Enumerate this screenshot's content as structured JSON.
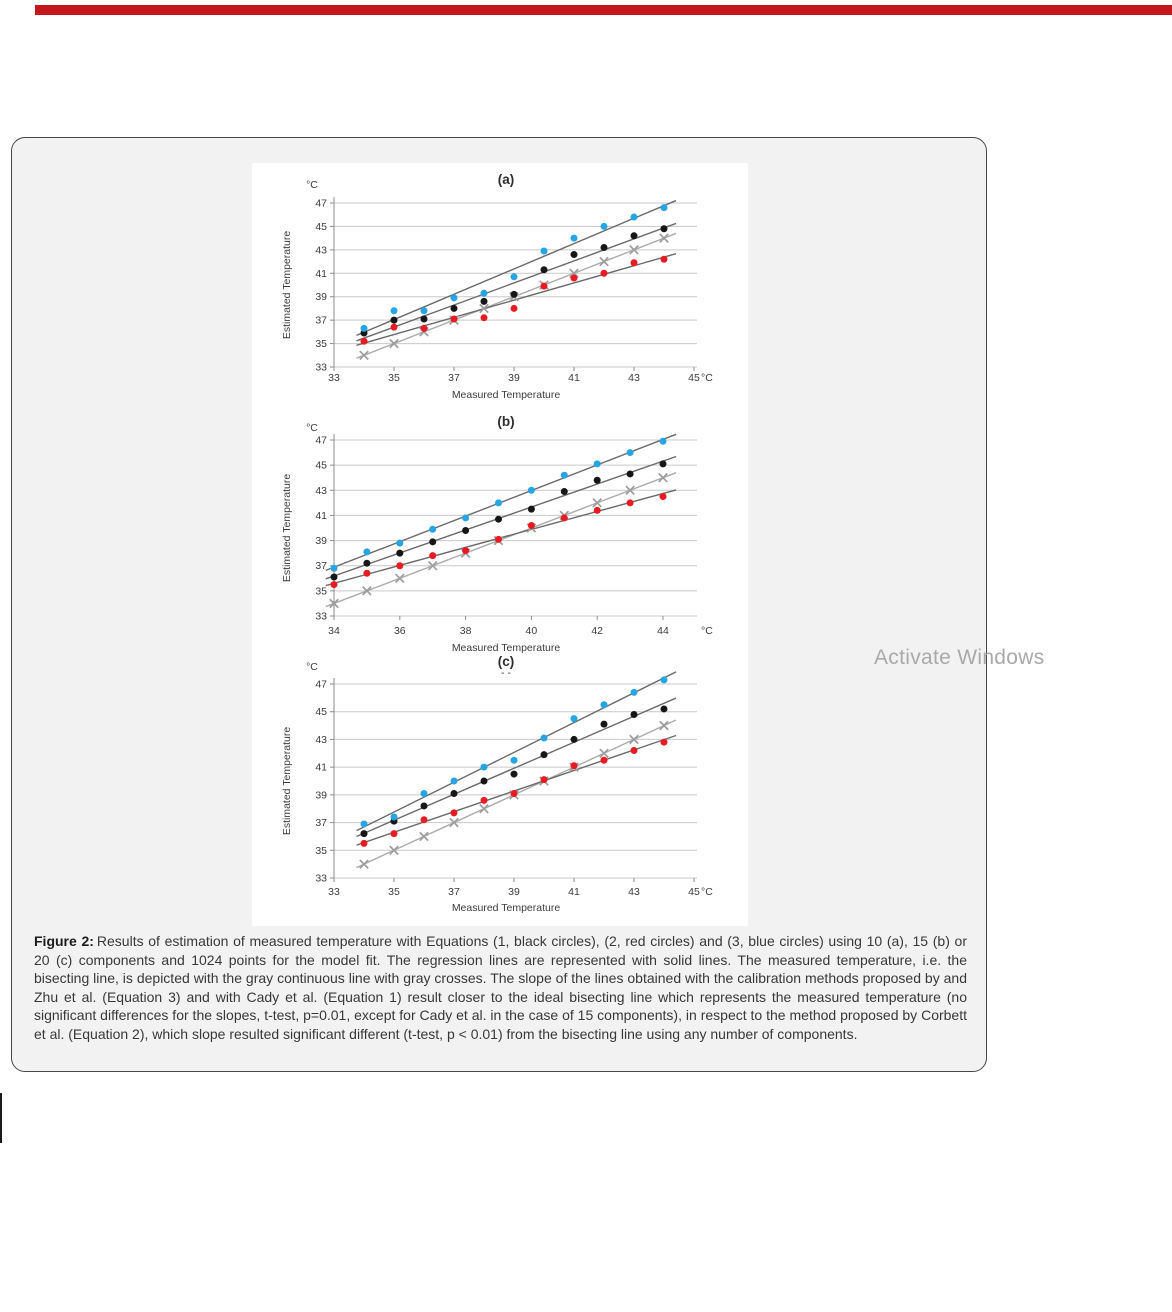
{
  "page": {
    "activate_windows": "Activate Windows",
    "top_bar_color": "#c5161d"
  },
  "figure_caption": {
    "label": "Figure 2:",
    "text": "Results of estimation of measured temperature with Equations (1, black circles), (2, red circles) and (3, blue circles) using 10 (a), 15 (b) or 20 (c) components and 1024 points for the model fit. The regression lines are represented with solid lines. The measured temperature, i.e. the bisecting line, is depicted with the gray continuous line with gray crosses. The slope of the lines obtained with the calibration methods proposed by and Zhu et al. (Equation 3) and with Cady et al. (Equation 1) result closer to the ideal bisecting line which represents the measured temperature (no significant differences for the slopes, t-test, p=0.01, except for Cady et al. in the case of 15 components), in respect to the method proposed by Corbett et al. (Equation 2), which slope resulted significant different (t-test, p < 0.01) from the bisecting line using any number of components."
  },
  "chart_data": [
    {
      "id": "a",
      "type": "scatter",
      "title": "(a)",
      "xlabel": "Measured Temperature",
      "ylabel": "Estimated Temperature",
      "x_unit": "°C",
      "y_unit": "°C",
      "xlim": [
        33,
        45
      ],
      "ylim": [
        33,
        47
      ],
      "x_ticks": [
        33,
        35,
        37,
        39,
        41,
        43,
        45
      ],
      "y_ticks": [
        47,
        45,
        43,
        41,
        39,
        37,
        35,
        33
      ],
      "grid": true,
      "x": [
        34,
        35,
        36,
        37,
        38,
        39,
        40,
        41,
        42,
        43,
        44
      ],
      "series": [
        {
          "key": "bisecting-crosses",
          "label": "Measured temperature (bisecting line)",
          "marker": "cross",
          "role": "bisect",
          "color": "#9d9d9d",
          "values": [
            34,
            35,
            36,
            37,
            38,
            39,
            40,
            41,
            42,
            43,
            44
          ]
        },
        {
          "key": "equation-1-black",
          "label": "Equation 1 (black circles)",
          "marker": "circle",
          "color": "#161616",
          "values": [
            35.9,
            37.0,
            37.1,
            38.0,
            38.6,
            39.2,
            41.3,
            42.6,
            43.2,
            44.2,
            44.8
          ]
        },
        {
          "key": "equation-2-red",
          "label": "Equation 2 (red circles)",
          "marker": "circle",
          "color": "#e81b23",
          "values": [
            35.2,
            36.4,
            36.3,
            37.1,
            37.2,
            38.0,
            39.9,
            40.6,
            41.0,
            41.9,
            42.2
          ]
        },
        {
          "key": "equation-3-blue",
          "label": "Equation 3 (blue circles)",
          "marker": "circle",
          "color": "#27a5e3",
          "values": [
            36.3,
            37.8,
            37.8,
            38.9,
            39.3,
            40.7,
            42.9,
            44.0,
            45.0,
            45.8,
            46.6
          ]
        }
      ]
    },
    {
      "id": "b",
      "type": "scatter",
      "title": "(b)",
      "xlabel": "Measured Temperature",
      "ylabel": "Estimated Temperature",
      "x_unit": "°C",
      "y_unit": "°C",
      "xlim": [
        34,
        44
      ],
      "ylim": [
        33,
        47
      ],
      "x_ticks": [
        34,
        36,
        38,
        40,
        42,
        44
      ],
      "y_ticks": [
        47,
        45,
        43,
        41,
        39,
        37,
        35,
        33
      ],
      "grid": true,
      "x": [
        34,
        35,
        36,
        37,
        38,
        39,
        40,
        41,
        42,
        43,
        44
      ],
      "series": [
        {
          "key": "bisecting-crosses",
          "label": "Measured temperature (bisecting line)",
          "marker": "cross",
          "role": "bisect",
          "color": "#9d9d9d",
          "values": [
            34,
            35,
            36,
            37,
            38,
            39,
            40,
            41,
            42,
            43,
            44
          ]
        },
        {
          "key": "equation-1-black",
          "label": "Equation 1 (black circles)",
          "marker": "circle",
          "color": "#161616",
          "values": [
            36.1,
            37.2,
            38.0,
            38.9,
            39.8,
            40.7,
            41.5,
            42.9,
            43.8,
            44.3,
            45.1
          ]
        },
        {
          "key": "equation-2-red",
          "label": "Equation 2 (red circles)",
          "marker": "circle",
          "color": "#e81b23",
          "values": [
            35.5,
            36.4,
            37.0,
            37.8,
            38.2,
            39.1,
            40.2,
            40.8,
            41.4,
            42.0,
            42.5
          ]
        },
        {
          "key": "equation-3-blue",
          "label": "Equation 3 (blue circles)",
          "marker": "circle",
          "color": "#27a5e3",
          "values": [
            36.8,
            38.1,
            38.8,
            39.9,
            40.8,
            42.0,
            43.0,
            44.2,
            45.1,
            46.0,
            46.9
          ]
        }
      ]
    },
    {
      "id": "c",
      "type": "scatter",
      "title": "(c)",
      "subtitle": "- -",
      "xlabel": "Measured Temperature",
      "ylabel": "Estimated Temperature",
      "x_unit": "°C",
      "y_unit": "°C",
      "xlim": [
        33,
        45
      ],
      "ylim": [
        33,
        47
      ],
      "x_ticks": [
        33,
        35,
        37,
        39,
        41,
        43,
        45
      ],
      "y_ticks": [
        47,
        45,
        43,
        41,
        39,
        37,
        35,
        33
      ],
      "grid": true,
      "x": [
        34,
        35,
        36,
        37,
        38,
        39,
        40,
        41,
        42,
        43,
        44
      ],
      "series": [
        {
          "key": "bisecting-crosses",
          "label": "Measured temperature (bisecting line)",
          "marker": "cross",
          "role": "bisect",
          "color": "#9d9d9d",
          "values": [
            34,
            35,
            36,
            37,
            38,
            39,
            40,
            41,
            42,
            43,
            44
          ]
        },
        {
          "key": "equation-1-black",
          "label": "Equation 1 (black circles)",
          "marker": "circle",
          "color": "#161616",
          "values": [
            36.2,
            37.1,
            38.2,
            39.1,
            40.0,
            40.5,
            41.9,
            43.0,
            44.1,
            44.8,
            45.2
          ]
        },
        {
          "key": "equation-2-red",
          "label": "Equation 2 (red circles)",
          "marker": "circle",
          "color": "#e81b23",
          "values": [
            35.5,
            36.2,
            37.2,
            37.7,
            38.6,
            39.1,
            40.1,
            41.1,
            41.5,
            42.2,
            42.8
          ]
        },
        {
          "key": "equation-3-blue",
          "label": "Equation 3 (blue circles)",
          "marker": "circle",
          "color": "#27a5e3",
          "values": [
            36.9,
            37.4,
            39.1,
            40.0,
            41.0,
            41.5,
            43.1,
            44.5,
            45.5,
            46.4,
            47.3
          ]
        }
      ]
    }
  ]
}
